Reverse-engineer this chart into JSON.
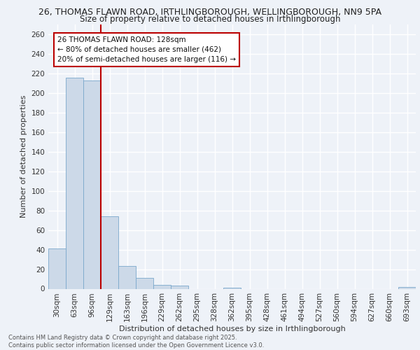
{
  "title_line1": "26, THOMAS FLAWN ROAD, IRTHLINGBOROUGH, WELLINGBOROUGH, NN9 5PA",
  "title_line2": "Size of property relative to detached houses in Irthlingborough",
  "xlabel": "Distribution of detached houses by size in Irthlingborough",
  "ylabel": "Number of detached properties",
  "footer_line1": "Contains HM Land Registry data © Crown copyright and database right 2025.",
  "footer_line2": "Contains public sector information licensed under the Open Government Licence v3.0.",
  "annotation_title": "26 THOMAS FLAWN ROAD: 128sqm",
  "annotation_line2": "← 80% of detached houses are smaller (462)",
  "annotation_line3": "20% of semi-detached houses are larger (116) →",
  "categories": [
    "30sqm",
    "63sqm",
    "96sqm",
    "129sqm",
    "163sqm",
    "196sqm",
    "229sqm",
    "262sqm",
    "295sqm",
    "328sqm",
    "362sqm",
    "395sqm",
    "428sqm",
    "461sqm",
    "494sqm",
    "527sqm",
    "560sqm",
    "594sqm",
    "627sqm",
    "660sqm",
    "693sqm"
  ],
  "values": [
    41,
    216,
    213,
    74,
    23,
    11,
    4,
    3,
    0,
    0,
    1,
    0,
    0,
    0,
    0,
    0,
    0,
    0,
    0,
    0,
    2
  ],
  "bar_color": "#ccd9e8",
  "bar_edge_color": "#7aa8cc",
  "vline_color": "#bb0000",
  "vline_x": 2.5,
  "ylim": [
    0,
    270
  ],
  "yticks": [
    0,
    20,
    40,
    60,
    80,
    100,
    120,
    140,
    160,
    180,
    200,
    220,
    240,
    260
  ],
  "background_color": "#eef2f8",
  "grid_color": "#ffffff",
  "title_fontsize": 9,
  "subtitle_fontsize": 8.5,
  "axis_label_fontsize": 8,
  "tick_fontsize": 7.5,
  "footer_fontsize": 6,
  "annotation_fontsize": 7.5,
  "annotation_box_color": "#ffffff",
  "annotation_box_edge": "#bb0000"
}
